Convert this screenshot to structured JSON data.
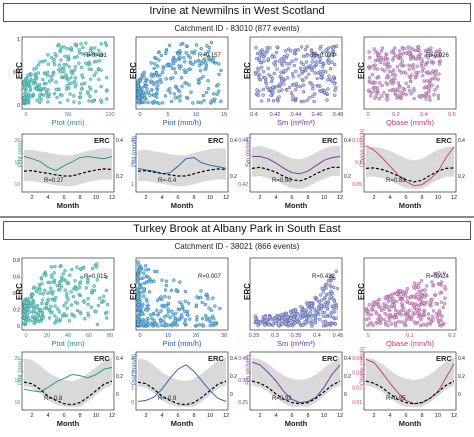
{
  "sections": [
    {
      "title": "Irvine at Newmilns in West Scotland",
      "catchment": "Catchment ID - 83010 (877 events)",
      "scatter": [
        {
          "label": "Ptot (mm)",
          "r": "R=0.431",
          "ticks": [
            "0",
            "50",
            "100"
          ],
          "xmin": 0,
          "xmax": 100,
          "color": "#2a8a84",
          "fill": "#6fd0cf",
          "shape": "wedge",
          "yticks": []
        },
        {
          "label": "Pint (mm/h)",
          "r": "R=0.157",
          "ticks": [
            "0",
            "5",
            "10",
            "15"
          ],
          "xmin": 0,
          "xmax": 15,
          "color": "#1f5aa8",
          "fill": "#6fc6dc",
          "shape": "wedge",
          "yticks": []
        },
        {
          "label": "Sm (m³/m³)",
          "r": "R=0.031",
          "ticks": [
            "0.4",
            "0.42",
            "0.44",
            "0.46",
            "0.48"
          ],
          "xmin": 0.4,
          "xmax": 0.48,
          "color": "#6a2f95",
          "fill": "#8ec8e4",
          "shape": "cloud",
          "yticks": []
        },
        {
          "label": "Qbase (mm/h)",
          "r": "R=0.026",
          "ticks": [
            "0",
            "0.2",
            "0.4",
            "0.6"
          ],
          "xmin": 0,
          "xmax": 0.6,
          "color": "#c2386e",
          "fill": "#a9b7e4",
          "shape": "block",
          "yticks": []
        }
      ],
      "monthly": [
        {
          "label": "Ptot (mm)",
          "r": "R=0.27",
          "yticks": [
            "10",
            "15",
            "20"
          ],
          "erc": [
            0.35,
            0.36,
            0.33,
            0.31,
            0.28,
            0.26,
            0.26,
            0.3,
            0.34,
            0.37,
            0.39,
            0.38
          ],
          "driver": [
            0.62,
            0.58,
            0.53,
            0.42,
            0.36,
            0.45,
            0.52,
            0.6,
            0.62,
            0.6,
            0.58,
            0.62
          ],
          "color": "#2a9a92",
          "band": [
            0.12,
            0.7
          ]
        },
        {
          "label": "Pint (mm/h)",
          "r": "R=-0.4",
          "yticks": [
            "1",
            "2",
            "3"
          ],
          "erc": [
            0.35,
            0.36,
            0.33,
            0.31,
            0.28,
            0.26,
            0.26,
            0.3,
            0.34,
            0.37,
            0.39,
            0.38
          ],
          "driver": [
            0.4,
            0.37,
            0.35,
            0.3,
            0.32,
            0.44,
            0.58,
            0.6,
            0.5,
            0.46,
            0.43,
            0.4
          ],
          "color": "#2a6ab8",
          "band": [
            0.12,
            0.7
          ]
        },
        {
          "label": "Sm (m³/m³)",
          "r": "R=0.90",
          "yticks": [
            "0.42",
            "0.44"
          ],
          "erc": [
            0.4,
            0.42,
            0.38,
            0.33,
            0.25,
            0.19,
            0.17,
            0.22,
            0.3,
            0.37,
            0.42,
            0.42
          ],
          "driver": [
            0.62,
            0.62,
            0.58,
            0.5,
            0.4,
            0.32,
            0.3,
            0.35,
            0.45,
            0.55,
            0.6,
            0.62
          ],
          "color": "#7b3fa0",
          "band": [
            0.1,
            0.72
          ]
        },
        {
          "label": "Qbase (mm/h)",
          "r": "R=0.83",
          "yticks": [
            "0.05",
            "0.1",
            "0.15"
          ],
          "erc": [
            0.4,
            0.41,
            0.38,
            0.33,
            0.26,
            0.19,
            0.15,
            0.18,
            0.27,
            0.35,
            0.4,
            0.41
          ],
          "driver": [
            0.82,
            0.74,
            0.6,
            0.44,
            0.28,
            0.16,
            0.08,
            0.1,
            0.2,
            0.34,
            0.6,
            0.8
          ],
          "color": "#d0407a",
          "band": [
            0.1,
            0.72
          ]
        }
      ],
      "right_ticks": [
        "0.2",
        "0.4"
      ]
    },
    {
      "title": "Turkey Brook at Albany Park in South East",
      "catchment": "Catchment ID - 38021 (866 events)",
      "scatter": [
        {
          "label": "Ptot (mm)",
          "r": "R=0.015",
          "ticks": [
            "0",
            "20",
            "40",
            "60",
            "80"
          ],
          "xmin": 0,
          "xmax": 80,
          "color": "#2a8a84",
          "fill": "#6fd0cf",
          "shape": "wedge",
          "yticks": [
            "0",
            "0.2",
            "0.4",
            "0.6",
            "0.8"
          ]
        },
        {
          "label": "Pint (mm/h)",
          "r": "R=0.007",
          "ticks": [
            "0",
            "10",
            "20",
            "30"
          ],
          "xmin": 0,
          "xmax": 30,
          "color": "#1f5aa8",
          "fill": "#6fc6dc",
          "shape": "lshape",
          "yticks": []
        },
        {
          "label": "Sm (m³/m³)",
          "r": "R=0.432",
          "ticks": [
            "0.25",
            "0.3",
            "0.35",
            "0.4",
            "0.45"
          ],
          "xmin": 0.25,
          "xmax": 0.45,
          "color": "#6a2f95",
          "fill": "#8ec8e4",
          "shape": "rise",
          "yticks": []
        },
        {
          "label": "Qbase (mm/h)",
          "r": "R=0.424",
          "ticks": [
            "0",
            "0.1",
            "0.2"
          ],
          "xmin": 0,
          "xmax": 0.2,
          "color": "#c2386e",
          "fill": "#b8b4e4",
          "shape": "tri",
          "yticks": []
        }
      ],
      "monthly": [
        {
          "label": "Ptot (mm)",
          "r": "R=-0.8",
          "yticks": [
            "10",
            "15",
            "20"
          ],
          "erc": [
            0.48,
            0.45,
            0.35,
            0.22,
            0.14,
            0.08,
            0.06,
            0.1,
            0.2,
            0.32,
            0.44,
            0.5
          ],
          "driver": [
            0.35,
            0.32,
            0.3,
            0.38,
            0.48,
            0.55,
            0.62,
            0.6,
            0.56,
            0.62,
            0.72,
            0.75
          ],
          "color": "#2a9a92",
          "band": [
            0.05,
            0.8
          ]
        },
        {
          "label": "Pint (mm/h)",
          "r": "R=-0.9",
          "yticks": [
            "0",
            "1",
            "2",
            "3"
          ],
          "erc": [
            0.48,
            0.45,
            0.35,
            0.22,
            0.14,
            0.08,
            0.06,
            0.1,
            0.2,
            0.32,
            0.44,
            0.5
          ],
          "driver": [
            0.12,
            0.14,
            0.2,
            0.35,
            0.55,
            0.72,
            0.8,
            0.68,
            0.5,
            0.32,
            0.18,
            0.12
          ],
          "color": "#2a6ab8",
          "band": [
            0.05,
            0.8
          ]
        },
        {
          "label": "Sm (m³/m³)",
          "r": "R=0.93",
          "yticks": [
            "0.25",
            "0.35",
            "0.45"
          ],
          "erc": [
            0.5,
            0.46,
            0.38,
            0.26,
            0.16,
            0.1,
            0.08,
            0.1,
            0.18,
            0.3,
            0.42,
            0.5
          ],
          "driver": [
            0.85,
            0.8,
            0.66,
            0.5,
            0.3,
            0.16,
            0.1,
            0.12,
            0.2,
            0.38,
            0.62,
            0.8
          ],
          "color": "#7b3fa0",
          "band": [
            0.05,
            0.8
          ]
        },
        {
          "label": "Qbase (mm/h)",
          "r": "R=0.95",
          "yticks": [
            "0.01",
            "0.02",
            "0.03",
            "0.04"
          ],
          "erc": [
            0.5,
            0.46,
            0.38,
            0.26,
            0.16,
            0.1,
            0.08,
            0.1,
            0.18,
            0.3,
            0.42,
            0.5
          ],
          "driver": [
            0.9,
            0.84,
            0.66,
            0.46,
            0.28,
            0.14,
            0.08,
            0.1,
            0.18,
            0.3,
            0.56,
            0.82
          ],
          "color": "#d0407a",
          "band": [
            0.05,
            0.8
          ]
        }
      ],
      "right_ticks": [
        "0",
        "0.2",
        "0.4"
      ]
    }
  ],
  "axis_text": {
    "erc": "ERC",
    "month": "Month",
    "month_ticks": [
      "2",
      "4",
      "6",
      "8",
      "10",
      "12"
    ],
    "scatter_yticks": [
      "0",
      "0.5",
      "1"
    ]
  },
  "chart_data": {
    "type": "scatter",
    "note_series": "ERC vs drivers and monthly ERC climatology for two catchments"
  }
}
